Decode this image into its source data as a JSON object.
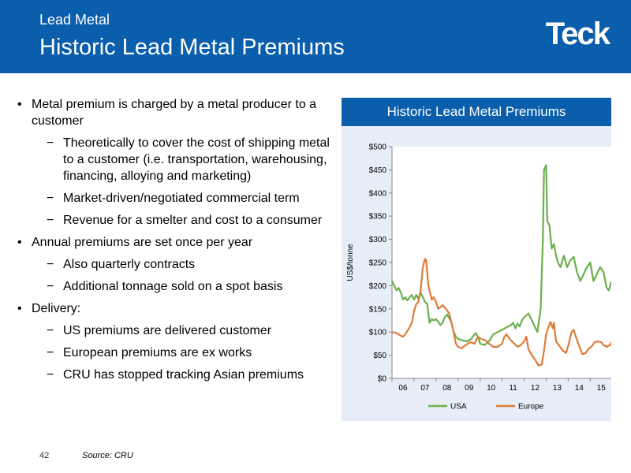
{
  "header": {
    "subtitle": "Lead Metal",
    "title": "Historic Lead Metal Premiums",
    "logo": "Teck"
  },
  "bullets": [
    {
      "level": 1,
      "text": "Metal premium is charged by a metal producer to a customer"
    },
    {
      "level": 2,
      "text": "Theoretically to cover the cost of shipping metal to a customer (i.e. transportation, warehousing, financing, alloying and marketing)"
    },
    {
      "level": 2,
      "text": "Market-driven/negotiated commercial term"
    },
    {
      "level": 2,
      "text": "Revenue for a smelter and cost to a consumer"
    },
    {
      "level": 1,
      "text": "Annual premiums are set once per  year"
    },
    {
      "level": 2,
      "text": "Also quarterly contracts"
    },
    {
      "level": 2,
      "text": "Additional tonnage sold on a spot basis"
    },
    {
      "level": 1,
      "text": "Delivery:"
    },
    {
      "level": 2,
      "text": "US premiums are delivered customer"
    },
    {
      "level": 2,
      "text": "European premiums are ex works"
    },
    {
      "level": 2,
      "text": "CRU has stopped tracking Asian premiums"
    }
  ],
  "footer": {
    "page_number": "42",
    "source": "Source:  CRU"
  },
  "chart_data": {
    "type": "line",
    "title": "Historic Lead Metal Premiums",
    "ylabel": "US$/tonne",
    "xlabel": "",
    "ylim": [
      0,
      500
    ],
    "xlim": [
      2006,
      2016.1
    ],
    "yticks": [
      0,
      50,
      100,
      150,
      200,
      250,
      300,
      350,
      400,
      450,
      500
    ],
    "ytick_labels": [
      "$0",
      "$50",
      "$100",
      "$150",
      "$200",
      "$250",
      "$300",
      "$350",
      "$400",
      "$450",
      "$500"
    ],
    "xticks": [
      2006.5,
      2007.5,
      2008.5,
      2009.5,
      2010.5,
      2011.5,
      2012.5,
      2013.5,
      2014.5,
      2015.5
    ],
    "xtick_labels": [
      "06",
      "07",
      "08",
      "09",
      "10",
      "11",
      "12",
      "13",
      "14",
      "15"
    ],
    "grid": false,
    "legend": "bottom",
    "colors": {
      "USA": "#6ab04c",
      "Europe": "#e07b39",
      "header": "#0b5eab",
      "panel": "#e7eef7"
    },
    "series": [
      {
        "name": "USA",
        "points": [
          [
            2006.0,
            210
          ],
          [
            2006.1,
            200
          ],
          [
            2006.2,
            190
          ],
          [
            2006.3,
            195
          ],
          [
            2006.4,
            185
          ],
          [
            2006.5,
            170
          ],
          [
            2006.6,
            175
          ],
          [
            2006.7,
            168
          ],
          [
            2006.8,
            175
          ],
          [
            2006.9,
            180
          ],
          [
            2007.0,
            170
          ],
          [
            2007.1,
            180
          ],
          [
            2007.2,
            172
          ],
          [
            2007.3,
            185
          ],
          [
            2007.4,
            175
          ],
          [
            2007.5,
            165
          ],
          [
            2007.6,
            160
          ],
          [
            2007.7,
            120
          ],
          [
            2007.8,
            128
          ],
          [
            2007.9,
            125
          ],
          [
            2008.0,
            128
          ],
          [
            2008.1,
            122
          ],
          [
            2008.2,
            115
          ],
          [
            2008.3,
            120
          ],
          [
            2008.4,
            132
          ],
          [
            2008.5,
            138
          ],
          [
            2008.6,
            130
          ],
          [
            2008.7,
            120
          ],
          [
            2008.8,
            100
          ],
          [
            2008.9,
            90
          ],
          [
            2009.0,
            85
          ],
          [
            2009.2,
            82
          ],
          [
            2009.4,
            80
          ],
          [
            2009.6,
            85
          ],
          [
            2009.7,
            92
          ],
          [
            2009.8,
            98
          ],
          [
            2009.9,
            90
          ],
          [
            2010.0,
            75
          ],
          [
            2010.2,
            72
          ],
          [
            2010.4,
            80
          ],
          [
            2010.6,
            95
          ],
          [
            2010.8,
            100
          ],
          [
            2011.0,
            105
          ],
          [
            2011.2,
            110
          ],
          [
            2011.4,
            115
          ],
          [
            2011.5,
            120
          ],
          [
            2011.6,
            108
          ],
          [
            2011.7,
            118
          ],
          [
            2011.8,
            112
          ],
          [
            2011.9,
            125
          ],
          [
            2012.0,
            132
          ],
          [
            2012.2,
            140
          ],
          [
            2012.4,
            120
          ],
          [
            2012.6,
            100
          ],
          [
            2012.75,
            150
          ],
          [
            2012.85,
            300
          ],
          [
            2012.9,
            450
          ],
          [
            2013.0,
            460
          ],
          [
            2013.05,
            340
          ],
          [
            2013.15,
            330
          ],
          [
            2013.25,
            280
          ],
          [
            2013.35,
            290
          ],
          [
            2013.45,
            265
          ],
          [
            2013.55,
            248
          ],
          [
            2013.65,
            240
          ],
          [
            2013.8,
            265
          ],
          [
            2013.95,
            240
          ],
          [
            2014.1,
            255
          ],
          [
            2014.25,
            262
          ],
          [
            2014.4,
            230
          ],
          [
            2014.55,
            210
          ],
          [
            2014.7,
            225
          ],
          [
            2014.85,
            240
          ],
          [
            2015.0,
            250
          ],
          [
            2015.15,
            210
          ],
          [
            2015.3,
            225
          ],
          [
            2015.45,
            240
          ],
          [
            2015.6,
            230
          ],
          [
            2015.75,
            195
          ],
          [
            2015.85,
            190
          ],
          [
            2015.95,
            208
          ],
          [
            2016.1,
            208
          ]
        ]
      },
      {
        "name": "Europe",
        "points": [
          [
            2006.0,
            100
          ],
          [
            2006.2,
            98
          ],
          [
            2006.4,
            92
          ],
          [
            2006.5,
            90
          ],
          [
            2006.6,
            95
          ],
          [
            2006.8,
            110
          ],
          [
            2006.9,
            120
          ],
          [
            2007.0,
            145
          ],
          [
            2007.1,
            160
          ],
          [
            2007.2,
            165
          ],
          [
            2007.3,
            190
          ],
          [
            2007.4,
            240
          ],
          [
            2007.5,
            258
          ],
          [
            2007.55,
            255
          ],
          [
            2007.65,
            200
          ],
          [
            2007.8,
            170
          ],
          [
            2007.9,
            175
          ],
          [
            2008.0,
            165
          ],
          [
            2008.1,
            150
          ],
          [
            2008.3,
            158
          ],
          [
            2008.45,
            150
          ],
          [
            2008.6,
            140
          ],
          [
            2008.75,
            110
          ],
          [
            2008.9,
            75
          ],
          [
            2009.0,
            68
          ],
          [
            2009.15,
            65
          ],
          [
            2009.35,
            72
          ],
          [
            2009.55,
            78
          ],
          [
            2009.75,
            75
          ],
          [
            2009.9,
            90
          ],
          [
            2010.05,
            85
          ],
          [
            2010.25,
            82
          ],
          [
            2010.4,
            75
          ],
          [
            2010.5,
            72
          ],
          [
            2010.6,
            68
          ],
          [
            2010.8,
            68
          ],
          [
            2011.0,
            75
          ],
          [
            2011.1,
            90
          ],
          [
            2011.2,
            95
          ],
          [
            2011.3,
            88
          ],
          [
            2011.4,
            82
          ],
          [
            2011.55,
            75
          ],
          [
            2011.7,
            68
          ],
          [
            2011.85,
            72
          ],
          [
            2012.0,
            80
          ],
          [
            2012.1,
            90
          ],
          [
            2012.2,
            62
          ],
          [
            2012.35,
            50
          ],
          [
            2012.5,
            40
          ],
          [
            2012.65,
            28
          ],
          [
            2012.8,
            30
          ],
          [
            2012.9,
            60
          ],
          [
            2013.0,
            95
          ],
          [
            2013.1,
            110
          ],
          [
            2013.2,
            122
          ],
          [
            2013.3,
            108
          ],
          [
            2013.35,
            120
          ],
          [
            2013.45,
            80
          ],
          [
            2013.6,
            70
          ],
          [
            2013.75,
            60
          ],
          [
            2013.9,
            55
          ],
          [
            2014.0,
            70
          ],
          [
            2014.15,
            100
          ],
          [
            2014.25,
            105
          ],
          [
            2014.35,
            90
          ],
          [
            2014.5,
            70
          ],
          [
            2014.65,
            52
          ],
          [
            2014.8,
            55
          ],
          [
            2014.9,
            62
          ],
          [
            2015.05,
            68
          ],
          [
            2015.2,
            78
          ],
          [
            2015.35,
            80
          ],
          [
            2015.5,
            78
          ],
          [
            2015.6,
            72
          ],
          [
            2015.75,
            68
          ],
          [
            2015.9,
            72
          ],
          [
            2016.0,
            80
          ],
          [
            2016.1,
            82
          ]
        ]
      }
    ]
  }
}
